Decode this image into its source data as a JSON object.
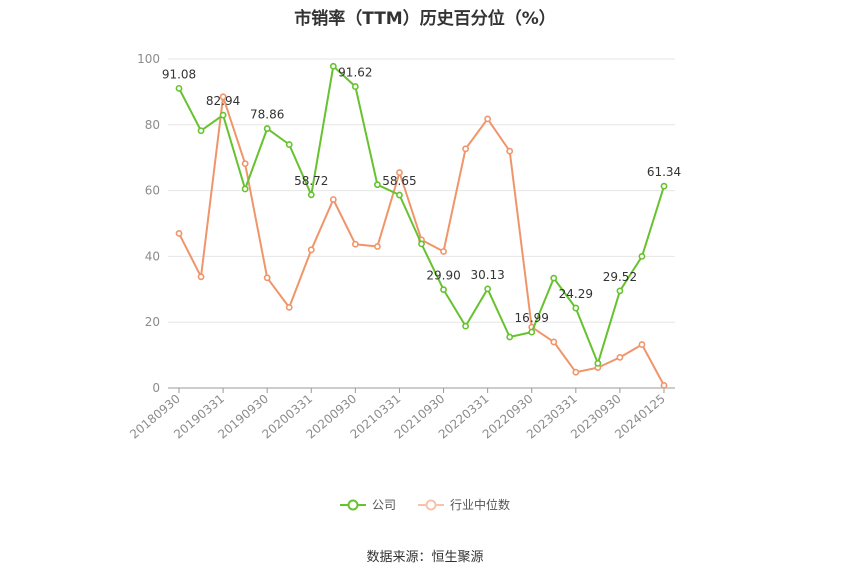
{
  "chart_data": {
    "type": "line",
    "title": "市销率（TTM）历史百分位（%）",
    "source": "数据来源：恒生聚源",
    "ylim": [
      0,
      100
    ],
    "yticks": [
      0,
      20,
      40,
      60,
      80,
      100
    ],
    "grid": true,
    "legend_position": "bottom",
    "x": [
      "20180930",
      "20181231",
      "20190331",
      "20190630",
      "20190930",
      "20191231",
      "20200331",
      "20200630",
      "20200930",
      "20201231",
      "20210331",
      "20210630",
      "20210930",
      "20211231",
      "20220331",
      "20220630",
      "20220930",
      "20221231",
      "20230331",
      "20230630",
      "20230930",
      "20231231",
      "20240125"
    ],
    "x_tick_labels": [
      "20180930",
      "20190331",
      "20190930",
      "20200331",
      "20200930",
      "20210331",
      "20210930",
      "20220331",
      "20220930",
      "20230331",
      "20230930",
      "20240125"
    ],
    "series": [
      {
        "name": "公司",
        "color": "#66c22e",
        "values": [
          91.08,
          78.2,
          82.94,
          60.5,
          78.86,
          74.0,
          58.72,
          97.8,
          91.62,
          61.8,
          58.65,
          43.8,
          29.9,
          18.8,
          30.13,
          15.5,
          16.99,
          33.4,
          24.29,
          7.5,
          29.52,
          40.0,
          61.34
        ],
        "labels": {
          "0": "91.08",
          "2": "82.94",
          "4": "78.86",
          "6": "58.72",
          "8": "91.62",
          "10": "58.65",
          "12": "29.90",
          "14": "30.13",
          "16": "16.99",
          "18": "24.29",
          "20": "29.52",
          "22": "61.34"
        }
      },
      {
        "name": "行业中位数",
        "color": "#f0956a",
        "values": [
          47.0,
          33.8,
          88.5,
          68.2,
          33.5,
          24.5,
          42.0,
          57.3,
          43.7,
          43.0,
          65.5,
          45.0,
          41.5,
          72.7,
          81.8,
          72.0,
          18.5,
          14.0,
          4.8,
          6.2,
          9.3,
          13.2,
          0.8
        ]
      }
    ]
  }
}
